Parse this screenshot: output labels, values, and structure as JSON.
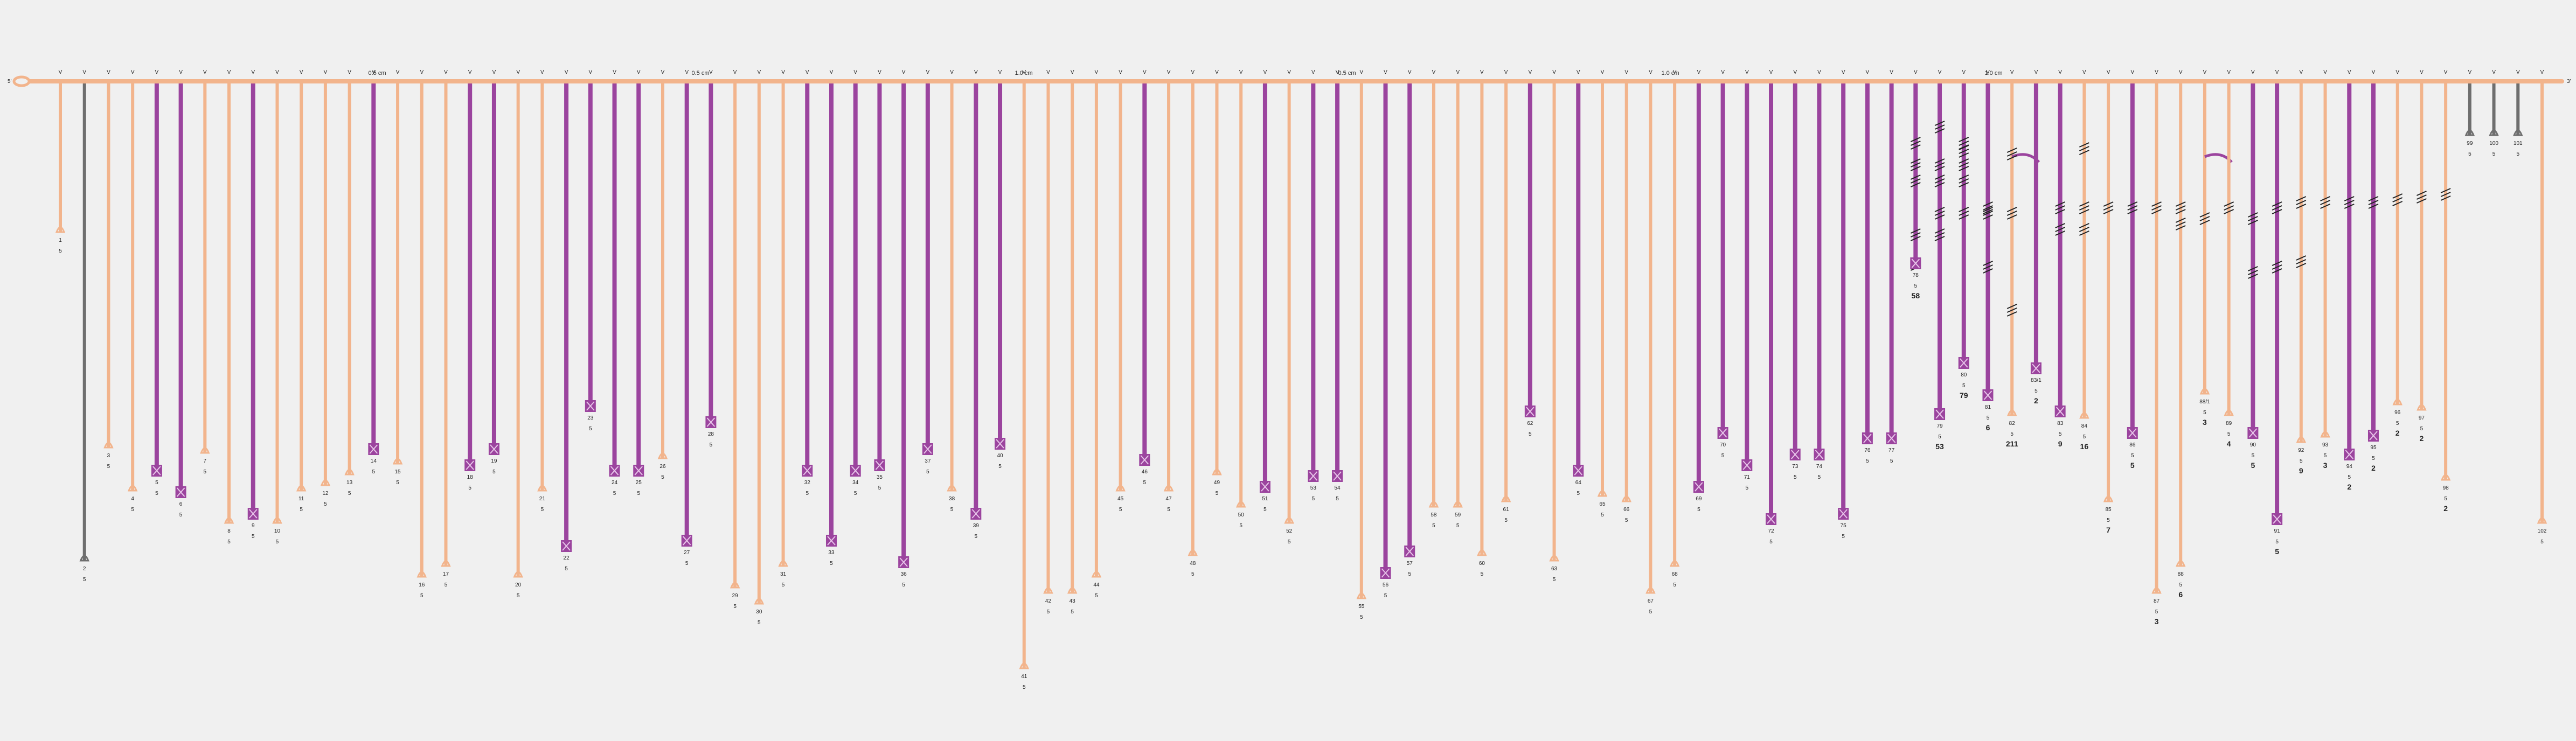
{
  "colors": {
    "background": "#f0f0f0",
    "orange": "#f2b48c",
    "purple": "#9b449e",
    "grey": "#6e6e6e",
    "text": "#222222"
  },
  "start_label": "5'",
  "end_label": "3'",
  "branch_marker": "V",
  "scale_labels": [
    "0.5 cm",
    "0.5 cm",
    "1.0 cm",
    "0.5 cm",
    "1.0 cm",
    "1.0 cm"
  ],
  "hairs": [
    {
      "label": "1",
      "count": "5",
      "len": 280,
      "color": "o",
      "ends": "o",
      "marker": "none"
    },
    {
      "label": "2",
      "count": "5",
      "len": 890,
      "color": "g",
      "ends": "o",
      "marker": "none"
    },
    {
      "label": "3",
      "count": "5",
      "len": 680,
      "color": "o",
      "ends": "o",
      "marker": "none"
    },
    {
      "label": "4",
      "count": "5",
      "len": 760,
      "color": "o",
      "ends": "o",
      "marker": "none"
    },
    {
      "label": "5",
      "count": "5",
      "len": 730,
      "color": "p",
      "ends": "o",
      "marker": "x"
    },
    {
      "label": "6",
      "count": "5",
      "len": 770,
      "color": "p",
      "ends": "o",
      "marker": "x"
    },
    {
      "label": "7",
      "count": "5",
      "len": 690,
      "color": "o",
      "ends": "o",
      "marker": "none"
    },
    {
      "label": "8",
      "count": "5",
      "len": 820,
      "color": "o",
      "ends": "o",
      "marker": "none"
    },
    {
      "label": "9",
      "count": "5",
      "len": 810,
      "color": "p",
      "ends": "o",
      "marker": "x"
    },
    {
      "label": "10",
      "count": "5",
      "len": 820,
      "color": "o",
      "ends": "o",
      "marker": "none"
    },
    {
      "label": "11",
      "count": "5",
      "len": 760,
      "color": "o",
      "ends": "o",
      "marker": "none"
    },
    {
      "label": "12",
      "count": "5",
      "len": 750,
      "color": "o",
      "ends": "o",
      "marker": "none"
    },
    {
      "label": "13",
      "count": "5",
      "len": 730,
      "color": "o",
      "ends": "o",
      "marker": "none"
    },
    {
      "label": "14",
      "count": "5",
      "len": 690,
      "color": "p",
      "ends": "o",
      "marker": "x"
    },
    {
      "label": "15",
      "count": "5",
      "len": 710,
      "color": "o",
      "ends": "o",
      "marker": "none"
    },
    {
      "label": "16",
      "count": "5",
      "len": 920,
      "color": "o",
      "ends": "o",
      "marker": "none"
    },
    {
      "label": "17",
      "count": "5",
      "len": 900,
      "color": "o",
      "ends": "o",
      "marker": "none"
    },
    {
      "label": "18",
      "count": "5",
      "len": 720,
      "color": "p",
      "ends": "o",
      "marker": "x"
    },
    {
      "label": "19",
      "count": "5",
      "len": 690,
      "color": "p",
      "ends": "o",
      "marker": "x"
    },
    {
      "label": "20",
      "count": "5",
      "len": 920,
      "color": "o",
      "ends": "o",
      "marker": "none"
    },
    {
      "label": "21",
      "count": "5",
      "len": 760,
      "color": "o",
      "ends": "o",
      "marker": "none"
    },
    {
      "label": "22",
      "count": "5",
      "len": 870,
      "color": "p",
      "ends": "o",
      "marker": "x"
    },
    {
      "label": "23",
      "count": "5",
      "len": 610,
      "color": "p",
      "ends": "o",
      "marker": "x"
    },
    {
      "label": "24",
      "count": "5",
      "len": 730,
      "color": "p",
      "ends": "o",
      "marker": "x"
    },
    {
      "label": "25",
      "count": "5",
      "len": 730,
      "color": "p",
      "ends": "o",
      "marker": "x"
    },
    {
      "label": "26",
      "count": "5",
      "len": 700,
      "color": "o",
      "ends": "o",
      "marker": "none"
    },
    {
      "label": "27",
      "count": "5",
      "len": 860,
      "color": "p",
      "ends": "o",
      "marker": "x"
    },
    {
      "label": "28",
      "count": "5",
      "len": 640,
      "color": "p",
      "ends": "o",
      "marker": "x"
    },
    {
      "label": "29",
      "count": "5",
      "len": 940,
      "color": "o",
      "ends": "o",
      "marker": "none"
    },
    {
      "label": "30",
      "count": "5",
      "len": 970,
      "color": "o",
      "ends": "o",
      "marker": "none"
    },
    {
      "label": "31",
      "count": "5",
      "len": 900,
      "color": "o",
      "ends": "o",
      "marker": "none"
    },
    {
      "label": "32",
      "count": "5",
      "len": 730,
      "color": "p",
      "ends": "o",
      "marker": "x"
    },
    {
      "label": "33",
      "count": "5",
      "len": 860,
      "color": "p",
      "ends": "o",
      "marker": "x"
    },
    {
      "label": "34",
      "count": "5",
      "len": 730,
      "color": "p",
      "ends": "o",
      "marker": "x"
    },
    {
      "label": "35",
      "count": "5",
      "len": 720,
      "color": "p",
      "ends": "o",
      "marker": "x"
    },
    {
      "label": "36",
      "count": "5",
      "len": 900,
      "color": "p",
      "ends": "o",
      "marker": "x"
    },
    {
      "label": "37",
      "count": "5",
      "len": 690,
      "color": "p",
      "ends": "o",
      "marker": "x"
    },
    {
      "label": "38",
      "count": "5",
      "len": 760,
      "color": "o",
      "ends": "o",
      "marker": "none"
    },
    {
      "label": "39",
      "count": "5",
      "len": 810,
      "color": "p",
      "ends": "o",
      "marker": "x"
    },
    {
      "label": "40",
      "count": "5",
      "len": 680,
      "color": "p",
      "ends": "o",
      "marker": "x"
    },
    {
      "label": "41",
      "count": "5",
      "len": 1090,
      "color": "o",
      "ends": "o",
      "marker": "none"
    },
    {
      "label": "42",
      "count": "5",
      "len": 950,
      "color": "o",
      "ends": "o",
      "marker": "none"
    },
    {
      "label": "43",
      "count": "5",
      "len": 950,
      "color": "o",
      "ends": "o",
      "marker": "none"
    },
    {
      "label": "44",
      "count": "5",
      "len": 920,
      "color": "o",
      "ends": "o",
      "marker": "none"
    },
    {
      "label": "45",
      "count": "5",
      "len": 760,
      "color": "o",
      "ends": "o",
      "marker": "none"
    },
    {
      "label": "46",
      "count": "5",
      "len": 710,
      "color": "p",
      "ends": "o",
      "marker": "x"
    },
    {
      "label": "47",
      "count": "5",
      "len": 760,
      "color": "o",
      "ends": "o",
      "marker": "none"
    },
    {
      "label": "48",
      "count": "5",
      "len": 880,
      "color": "o",
      "ends": "o",
      "marker": "none"
    },
    {
      "label": "49",
      "count": "5",
      "len": 730,
      "color": "o",
      "ends": "o",
      "marker": "none"
    },
    {
      "label": "50",
      "count": "5",
      "len": 790,
      "color": "o",
      "ends": "o",
      "marker": "none"
    },
    {
      "label": "51",
      "count": "5",
      "len": 760,
      "color": "p",
      "ends": "o",
      "marker": "x"
    },
    {
      "label": "52",
      "count": "5",
      "len": 820,
      "color": "o",
      "ends": "o",
      "marker": "none"
    },
    {
      "label": "53",
      "count": "5",
      "len": 740,
      "color": "p",
      "ends": "o",
      "marker": "x"
    },
    {
      "label": "54",
      "count": "5",
      "len": 740,
      "color": "p",
      "ends": "o",
      "marker": "x"
    },
    {
      "label": "55",
      "count": "5",
      "len": 960,
      "color": "o",
      "ends": "o",
      "marker": "none"
    },
    {
      "label": "56",
      "count": "5",
      "len": 920,
      "color": "p",
      "ends": "o",
      "marker": "x"
    },
    {
      "label": "57",
      "count": "5",
      "len": 880,
      "color": "p",
      "ends": "o",
      "marker": "x"
    },
    {
      "label": "58",
      "count": "5",
      "len": 790,
      "color": "o",
      "ends": "o",
      "marker": "none"
    },
    {
      "label": "59",
      "count": "5",
      "len": 790,
      "color": "o",
      "ends": "o",
      "marker": "none"
    },
    {
      "label": "60",
      "count": "5",
      "len": 880,
      "color": "o",
      "ends": "o",
      "marker": "none"
    },
    {
      "label": "61",
      "count": "5",
      "len": 780,
      "color": "o",
      "ends": "o",
      "marker": "none"
    },
    {
      "label": "62",
      "count": "5",
      "len": 620,
      "color": "p",
      "ends": "o",
      "marker": "x"
    },
    {
      "label": "63",
      "count": "5",
      "len": 890,
      "color": "o",
      "ends": "o",
      "marker": "none"
    },
    {
      "label": "64",
      "count": "5",
      "len": 730,
      "color": "p",
      "ends": "o",
      "marker": "x"
    },
    {
      "label": "65",
      "count": "5",
      "len": 770,
      "color": "o",
      "ends": "o",
      "marker": "none"
    },
    {
      "label": "66",
      "count": "5",
      "len": 780,
      "color": "o",
      "ends": "o",
      "marker": "none"
    },
    {
      "label": "67",
      "count": "5",
      "len": 950,
      "color": "o",
      "ends": "o",
      "marker": "none"
    },
    {
      "label": "68",
      "count": "5",
      "len": 900,
      "color": "o",
      "ends": "o",
      "marker": "none"
    },
    {
      "label": "69",
      "count": "5",
      "len": 760,
      "color": "p",
      "ends": "o",
      "marker": "x"
    },
    {
      "label": "70",
      "count": "5",
      "len": 660,
      "color": "p",
      "ends": "o",
      "marker": "x"
    },
    {
      "label": "71",
      "count": "5",
      "len": 720,
      "color": "p",
      "ends": "o",
      "marker": "x"
    },
    {
      "label": "72",
      "count": "5",
      "len": 820,
      "color": "p",
      "ends": "o",
      "marker": "x"
    },
    {
      "label": "73",
      "count": "5",
      "len": 700,
      "color": "p",
      "ends": "o",
      "marker": "x"
    },
    {
      "label": "74",
      "count": "5",
      "len": 700,
      "color": "p",
      "ends": "o",
      "marker": "x"
    },
    {
      "label": "75",
      "count": "5",
      "len": 810,
      "color": "p",
      "ends": "o",
      "marker": "x"
    },
    {
      "label": "76",
      "count": "5",
      "len": 670,
      "color": "p",
      "ends": "o",
      "marker": "x"
    },
    {
      "label": "77",
      "count": "5",
      "len": 670,
      "color": "p",
      "ends": "o",
      "marker": "x"
    },
    {
      "label": "78",
      "count": "5",
      "total": "58",
      "len": 345,
      "color": "p",
      "ends": "o",
      "marker": "x",
      "hatch": [
        120,
        160,
        190,
        290,
        345
      ]
    },
    {
      "label": "79",
      "count": "5",
      "total": "53",
      "len": 625,
      "color": "p",
      "ends": "o",
      "marker": "x",
      "hatch": [
        90,
        160,
        190,
        250,
        290
      ]
    },
    {
      "label": "80",
      "count": "5",
      "total": "79",
      "len": 530,
      "color": "p",
      "ends": "o",
      "marker": "x",
      "hatch": [
        120,
        135,
        160,
        190,
        250
      ]
    },
    {
      "label": "81",
      "count": "5",
      "total": "6",
      "len": 590,
      "color": "p",
      "ends": "o",
      "marker": "x",
      "hatch": [
        240,
        250,
        350
      ]
    },
    {
      "label": "82",
      "count": "5",
      "total": "211",
      "len": 620,
      "color": "o",
      "ends": "o",
      "marker": "none",
      "hatch": [
        140,
        250,
        430
      ],
      "arc": true
    },
    {
      "label": "83/1",
      "count": "5",
      "total": "2",
      "len": 540,
      "color": "p",
      "ends": "o",
      "marker": "x"
    },
    {
      "label": "83",
      "count": "5",
      "total": "9",
      "len": 620,
      "color": "p",
      "ends": "o",
      "marker": "x",
      "hatch": [
        240,
        280
      ]
    },
    {
      "label": "84",
      "count": "5",
      "total": "16",
      "len": 625,
      "color": "o",
      "ends": "o",
      "marker": "none",
      "hatch": [
        130,
        240,
        280
      ]
    },
    {
      "label": "85",
      "count": "5",
      "total": "7",
      "len": 780,
      "color": "o",
      "ends": "o",
      "marker": "none",
      "hatch": [
        240
      ]
    },
    {
      "label": "86",
      "count": "5",
      "total": "5",
      "len": 660,
      "color": "p",
      "ends": "o",
      "marker": "x",
      "hatch": [
        240
      ]
    },
    {
      "label": "87",
      "count": "5",
      "total": "3",
      "len": 950,
      "color": "o",
      "ends": "o",
      "marker": "none",
      "hatch": [
        240
      ]
    },
    {
      "label": "88",
      "count": "5",
      "total": "6",
      "len": 900,
      "color": "o",
      "ends": "o",
      "marker": "none",
      "hatch": [
        240,
        270
      ]
    },
    {
      "label": "88/1",
      "count": "5",
      "total": "3",
      "len": 580,
      "color": "o",
      "ends": "o",
      "marker": "none",
      "hatch": [
        260
      ],
      "arc": true
    },
    {
      "label": "89",
      "count": "5",
      "total": "4",
      "len": 620,
      "color": "o",
      "ends": "o",
      "marker": "none",
      "hatch": [
        240
      ]
    },
    {
      "label": "90",
      "count": "5",
      "total": "5",
      "len": 660,
      "color": "p",
      "ends": "o",
      "marker": "x",
      "hatch": [
        260,
        360
      ]
    },
    {
      "label": "91",
      "count": "5",
      "total": "5",
      "len": 820,
      "color": "p",
      "ends": "o",
      "marker": "x",
      "hatch": [
        240,
        350
      ]
    },
    {
      "label": "92",
      "count": "5",
      "total": "9",
      "len": 670,
      "color": "o",
      "ends": "o",
      "marker": "none",
      "hatch": [
        230,
        340
      ]
    },
    {
      "label": "93",
      "count": "5",
      "total": "3",
      "len": 660,
      "color": "o",
      "ends": "o",
      "marker": "none",
      "hatch": [
        230
      ]
    },
    {
      "label": "94",
      "count": "5",
      "total": "2",
      "len": 700,
      "color": "p",
      "ends": "o",
      "marker": "x",
      "hatch": [
        230
      ]
    },
    {
      "label": "95",
      "count": "5",
      "total": "2",
      "len": 665,
      "color": "p",
      "ends": "o",
      "marker": "x",
      "hatch": [
        230
      ]
    },
    {
      "label": "96",
      "count": "5",
      "total": "2",
      "len": 600,
      "color": "o",
      "ends": "o",
      "marker": "none",
      "hatch": [
        225
      ]
    },
    {
      "label": "97",
      "count": "5",
      "total": "2",
      "len": 610,
      "color": "o",
      "ends": "o",
      "marker": "none",
      "hatch": [
        220
      ]
    },
    {
      "label": "98",
      "count": "5",
      "total": "2",
      "len": 740,
      "color": "o",
      "ends": "o",
      "marker": "none",
      "hatch": [
        215
      ]
    },
    {
      "label": "99",
      "count": "5",
      "len": 100,
      "color": "g",
      "ends": "g",
      "marker": "none"
    },
    {
      "label": "100",
      "count": "5",
      "len": 100,
      "color": "g",
      "ends": "g",
      "marker": "none"
    },
    {
      "label": "101",
      "count": "5",
      "len": 100,
      "color": "g",
      "ends": "g",
      "marker": "none"
    },
    {
      "label": "102",
      "count": "5",
      "len": 820,
      "color": "o",
      "ends": "o",
      "marker": "none"
    }
  ]
}
